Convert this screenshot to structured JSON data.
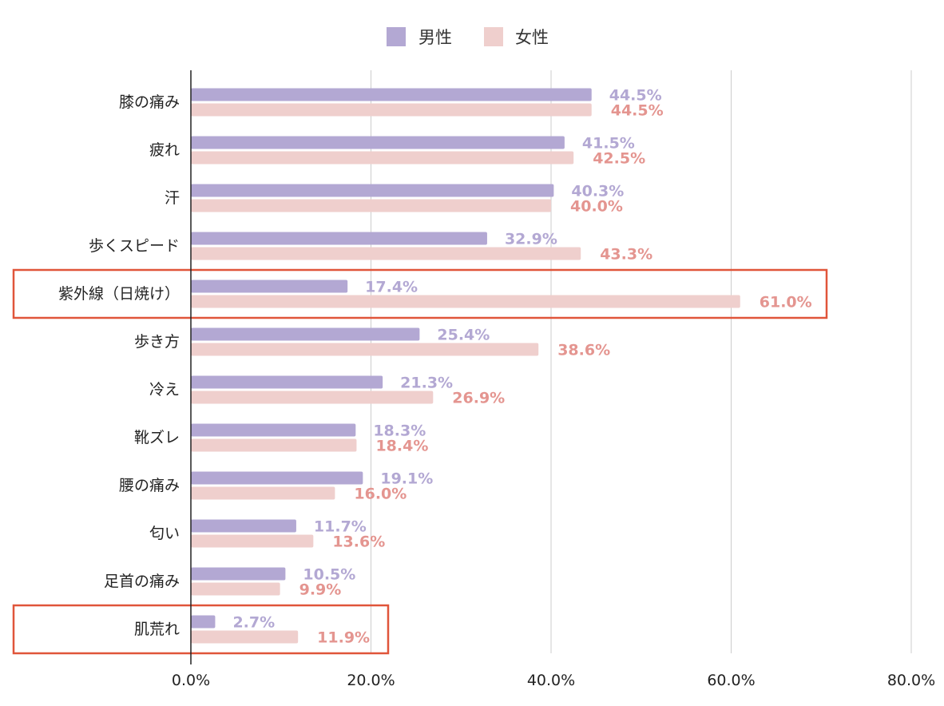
{
  "chart_data": {
    "type": "bar",
    "orientation": "horizontal",
    "categories": [
      "膝の痛み",
      "疲れ",
      "汗",
      "歩くスピード",
      "紫外線（日焼け）",
      "歩き方",
      "冷え",
      "靴ズレ",
      "腰の痛み",
      "匂い",
      "足首の痛み",
      "肌荒れ"
    ],
    "series": [
      {
        "name": "男性",
        "color": "#b3a8d3",
        "values": [
          44.5,
          41.5,
          40.3,
          32.9,
          17.4,
          25.4,
          21.3,
          18.3,
          19.1,
          11.7,
          10.5,
          2.7
        ],
        "labels": [
          "44.5%",
          "41.5%",
          "40.3%",
          "32.9%",
          "17.4%",
          "25.4%",
          "21.3%",
          "18.3%",
          "19.1%",
          "11.7%",
          "10.5%",
          "2.7%"
        ]
      },
      {
        "name": "女性",
        "color": "#efcfcd",
        "label_color": "#e49590",
        "values": [
          44.5,
          42.5,
          40.0,
          43.3,
          61.0,
          38.6,
          26.9,
          18.4,
          16.0,
          13.6,
          9.9,
          11.9
        ],
        "labels": [
          "44.5%",
          "42.5%",
          "40.0%",
          "43.3%",
          "61.0%",
          "38.6%",
          "26.9%",
          "18.4%",
          "16.0%",
          "13.6%",
          "9.9%",
          "11.9%"
        ]
      }
    ],
    "xlim": [
      0,
      80
    ],
    "xticks": [
      "0.0%",
      "20.0%",
      "40.0%",
      "60.0%",
      "80.0%"
    ],
    "grid": true,
    "legend_position": "top-center",
    "highlighted_categories": [
      "紫外線（日焼け）",
      "肌荒れ"
    ],
    "highlight_color": "#e0553a"
  }
}
